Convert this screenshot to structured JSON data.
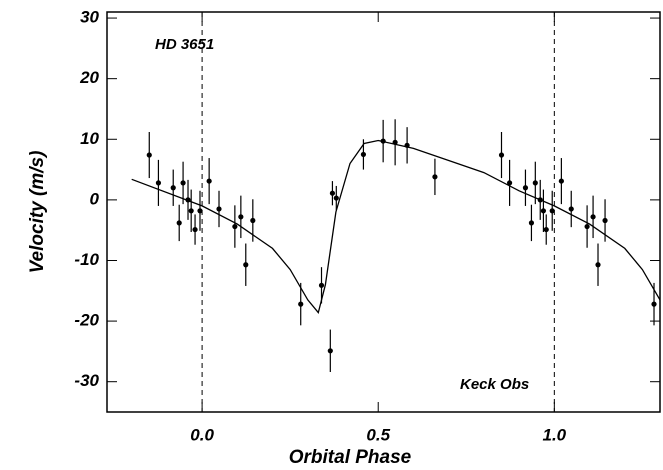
{
  "chart_data": {
    "type": "scatter",
    "xlabel": "Orbital Phase",
    "ylabel": "Velocity  (m/s)",
    "annotations": [
      "HD 3651",
      "Keck Obs"
    ],
    "xlim": [
      -0.27,
      1.3
    ],
    "ylim": [
      -35,
      31
    ],
    "xticks": [
      {
        "value": 0,
        "label": "0.0"
      },
      0.5,
      {
        "value": 1,
        "label": "1.0"
      }
    ],
    "yticks": [
      -30,
      -20,
      -10,
      0,
      10,
      20,
      30
    ],
    "vlines": [
      0,
      1
    ],
    "color": "#000000",
    "points": {
      "x": [
        -0.15,
        -0.124,
        -0.082,
        -0.065,
        -0.054,
        -0.04,
        -0.031,
        -0.02,
        -0.006,
        0.02,
        0.048,
        0.093,
        0.11,
        0.124,
        0.144,
        0.28,
        0.339,
        0.364,
        0.37,
        0.381,
        0.458,
        0.514,
        0.548,
        0.582,
        0.661,
        0.85,
        0.873,
        0.918,
        0.935,
        0.946,
        0.96,
        0.969,
        0.977,
        0.994,
        1.02,
        1.048,
        1.093,
        1.11,
        1.124,
        1.144,
        1.283
      ],
      "values": [
        7.4,
        2.8,
        2.0,
        -3.8,
        2.8,
        0,
        -1.8,
        -4.9,
        -1.8,
        3.1,
        -1.5,
        -4.4,
        -2.8,
        -10.7,
        -3.4,
        -17.2,
        -14.1,
        -24.9,
        1.1,
        0.3,
        7.5,
        9.7,
        9.5,
        9.0,
        3.8,
        7.4,
        2.8,
        2.0,
        -3.8,
        2.8,
        0,
        -1.8,
        -4.9,
        -1.8,
        3.1,
        -1.5,
        -4.4,
        -2.8,
        -10.7,
        -3.4,
        -17.2
      ],
      "errors": [
        3.8,
        3.8,
        3.0,
        3.0,
        3.5,
        3.3,
        3.5,
        2.5,
        3.3,
        3.8,
        3.0,
        3.5,
        3.5,
        3.5,
        3.5,
        3.5,
        3.0,
        3.5,
        2.0,
        2.0,
        2.5,
        3.5,
        3.8,
        3.0,
        3.0,
        3.8,
        3.8,
        3.0,
        3.0,
        3.5,
        3.3,
        3.5,
        2.5,
        3.3,
        3.8,
        3.0,
        3.5,
        3.5,
        3.5,
        3.5,
        3.5
      ]
    },
    "fit": {
      "x": [
        -0.2,
        0,
        0.1,
        0.2,
        0.25,
        0.3,
        0.33,
        0.35,
        0.38,
        0.42,
        0.46,
        0.5,
        0.6,
        0.7,
        0.8,
        0.9,
        1.0,
        1.1,
        1.2,
        1.25,
        1.3
      ],
      "values": [
        3.4,
        -1,
        -4,
        -8,
        -11.5,
        -16.5,
        -18.6,
        -14,
        -2,
        6,
        9.3,
        9.8,
        8.5,
        6.5,
        4.5,
        1.5,
        -1,
        -4,
        -8,
        -11.5,
        -16.5
      ]
    }
  }
}
